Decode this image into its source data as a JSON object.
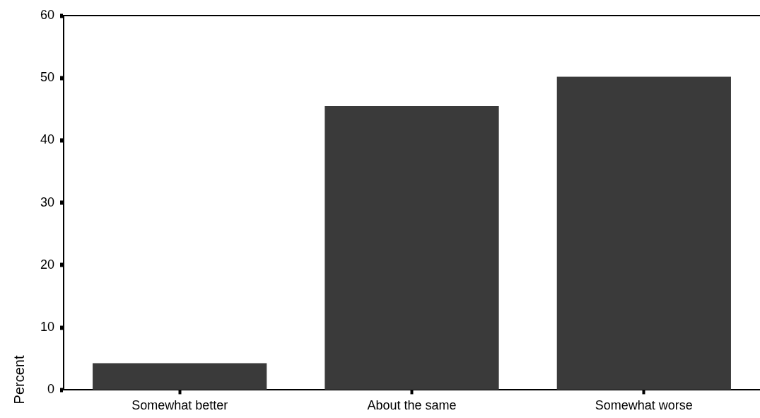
{
  "chart_data": {
    "type": "bar",
    "ylabel": "Percent",
    "categories": [
      "Somewhat better",
      "About the same",
      "Somewhat worse"
    ],
    "values": [
      4.3,
      45.5,
      50.2
    ],
    "color": "#3a3a3a",
    "ylim": [
      0,
      60
    ],
    "yticks": [
      0,
      10,
      20,
      30,
      40,
      50,
      60
    ],
    "grid": false,
    "legend": false
  }
}
